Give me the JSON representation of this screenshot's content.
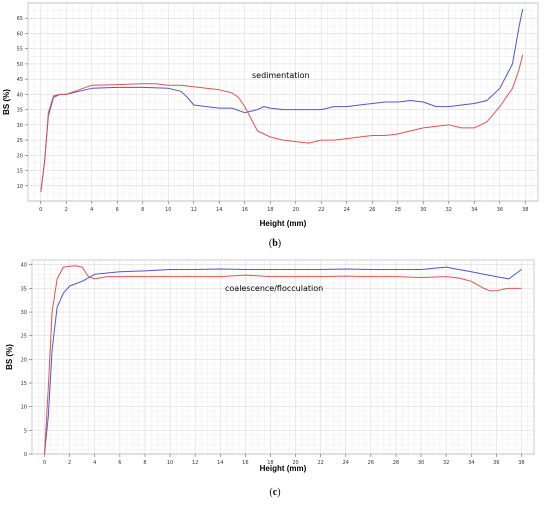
{
  "chart_data": [
    {
      "type": "line",
      "panel_label": "(b)",
      "caption_letter": "b",
      "annotation": "sedimentation",
      "xlabel": "Height (mm)",
      "ylabel": "BS (%)",
      "xlim": [
        -1,
        39
      ],
      "ylim": [
        5,
        70
      ],
      "x_ticks": [
        "0",
        "2",
        "4",
        "6",
        "8",
        "10",
        "12",
        "14",
        "16",
        "18",
        "20",
        "22",
        "24",
        "26",
        "28",
        "30",
        "32",
        "34",
        "36",
        "38"
      ],
      "y_ticks": [
        "10",
        "15",
        "20",
        "25",
        "30",
        "35",
        "40",
        "45",
        "50",
        "55",
        "60",
        "65"
      ],
      "grid": true,
      "series": [
        {
          "color": "#5555cc",
          "x": [
            0,
            0.3,
            0.6,
            1,
            1.5,
            2,
            3,
            4,
            6,
            8,
            10,
            11,
            11.5,
            12,
            13,
            14,
            15,
            16,
            16.5,
            17,
            17.5,
            18,
            19,
            20,
            21,
            22,
            23,
            24,
            25,
            26,
            27,
            28,
            29,
            30,
            31,
            32,
            33,
            34,
            35,
            36,
            37,
            37.5,
            37.8
          ],
          "y": [
            8,
            18,
            33,
            39,
            40,
            40,
            41,
            42,
            42.3,
            42.3,
            42,
            41,
            39,
            36.5,
            36,
            35.5,
            35.5,
            34,
            34.5,
            35,
            36,
            35.5,
            35,
            35,
            35,
            35,
            36,
            36,
            36.5,
            37,
            37.5,
            37.5,
            38,
            37.5,
            36,
            36,
            36.5,
            37,
            38,
            42,
            50,
            62,
            68
          ]
        },
        {
          "color": "#dd5555",
          "x": [
            0,
            0.3,
            0.6,
            1,
            1.5,
            2,
            3,
            4,
            6,
            8,
            9,
            10,
            11,
            12,
            13,
            14,
            15,
            15.5,
            16,
            16.5,
            17,
            17.5,
            18,
            19,
            20,
            21,
            22,
            23,
            24,
            25,
            26,
            27,
            28,
            29,
            30,
            31,
            32,
            33,
            34,
            35,
            36,
            37,
            37.5,
            37.8
          ],
          "y": [
            8,
            18,
            34,
            39.5,
            40,
            40,
            41.5,
            43,
            43.2,
            43.5,
            43.5,
            43,
            43,
            42.5,
            42,
            41.5,
            40.5,
            39,
            36,
            32,
            28,
            27,
            26,
            25,
            24.5,
            24,
            25,
            25,
            25.5,
            26,
            26.5,
            26.5,
            27,
            28,
            29,
            29.5,
            30,
            29,
            29,
            31,
            36,
            42,
            48,
            53
          ]
        }
      ]
    },
    {
      "type": "line",
      "panel_label": "(c)",
      "caption_letter": "c",
      "annotation": "coalescence/flocculation",
      "xlabel": "Height (mm)",
      "ylabel": "BS  (%)",
      "xlim": [
        -1,
        39
      ],
      "ylim": [
        0,
        41
      ],
      "x_ticks": [
        "0",
        "2",
        "4",
        "6",
        "8",
        "10",
        "12",
        "14",
        "16",
        "18",
        "20",
        "22",
        "24",
        "26",
        "28",
        "30",
        "32",
        "34",
        "36",
        "38"
      ],
      "y_ticks": [
        "0",
        "5",
        "10",
        "15",
        "20",
        "25",
        "30",
        "35",
        "40"
      ],
      "grid": true,
      "series": [
        {
          "color": "#5555cc",
          "x": [
            0,
            0.3,
            0.6,
            1,
            1.5,
            2,
            3,
            4,
            6,
            8,
            10,
            12,
            14,
            16,
            18,
            20,
            22,
            24,
            26,
            28,
            30,
            32,
            33,
            34,
            35,
            36,
            37,
            38
          ],
          "y": [
            0,
            8,
            22,
            31,
            34,
            35.5,
            36.5,
            38,
            38.5,
            38.7,
            39,
            39,
            39.1,
            39,
            39,
            39,
            39,
            39.1,
            39,
            39,
            39,
            39.5,
            39,
            38.5,
            38,
            37.5,
            37,
            39
          ]
        },
        {
          "color": "#dd5555",
          "x": [
            0,
            0.3,
            0.6,
            1,
            1.5,
            2,
            2.5,
            3,
            3.5,
            4,
            5,
            6,
            8,
            10,
            12,
            14,
            16,
            18,
            20,
            22,
            24,
            26,
            28,
            30,
            32,
            33,
            34,
            35,
            35.5,
            36,
            36.5,
            37,
            38
          ],
          "y": [
            0,
            14,
            30,
            37,
            39.5,
            39.7,
            39.8,
            39.5,
            37.5,
            37,
            37.5,
            37.5,
            37.5,
            37.5,
            37.5,
            37.5,
            37.8,
            37.5,
            37.5,
            37.5,
            37.6,
            37.5,
            37.5,
            37.3,
            37.5,
            37.2,
            36.5,
            35,
            34.5,
            34.5,
            34.8,
            35,
            35
          ]
        }
      ]
    }
  ]
}
